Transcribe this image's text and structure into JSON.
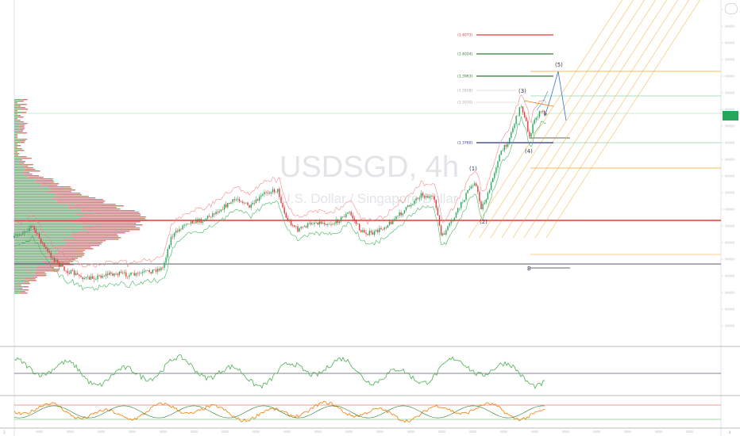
{
  "chart_data": {
    "type": "candlestick",
    "title": "USDSGD, 4h",
    "subtitle": "U.S. Dollar / Singapore Dollar",
    "fib_levels": [
      {
        "label": "(1.4073)",
        "color": "#e53935"
      },
      {
        "label": "(1.4024)",
        "color": "#2e7d32"
      },
      {
        "label": "(1.3963)",
        "color": "#2e7d32"
      },
      {
        "label": "(1.3928)",
        "color": "#c5c5c5"
      },
      {
        "label": "(1.3910)",
        "color": "#c5c5c5"
      },
      {
        "label": "(1.3760)",
        "color": "#283593"
      }
    ],
    "wave_labels": [
      "(1)",
      "(2)",
      "(3)",
      "(4)",
      "(5)"
    ],
    "small_marker": "B",
    "bottom_axis_left": "2",
    "bottom_axis_right": "4",
    "colors": {
      "up": "#26a65b",
      "down": "#e53935",
      "projection": "#4a7fd4",
      "channel": "#f5a623"
    }
  }
}
